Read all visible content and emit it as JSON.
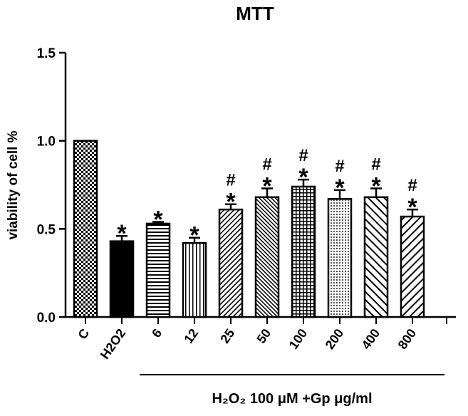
{
  "chart_data": {
    "type": "bar",
    "title": "MTT",
    "y_label": "viability of cell %",
    "x_label": "H₂O₂ 100 μM +Gp μg/ml",
    "categories": [
      "C",
      "H2O2",
      "6",
      "12",
      "25",
      "50",
      "100",
      "200",
      "400",
      "800"
    ],
    "values": [
      1.0,
      0.43,
      0.53,
      0.42,
      0.61,
      0.68,
      0.74,
      0.67,
      0.68,
      0.57
    ],
    "errors": [
      0,
      0.03,
      0.01,
      0.03,
      0.03,
      0.05,
      0.04,
      0.05,
      0.05,
      0.04
    ],
    "stars": [
      null,
      "*",
      "*",
      "*",
      "*",
      "*",
      "*",
      "*",
      "*",
      "*"
    ],
    "hashes": [
      null,
      null,
      null,
      null,
      "#",
      "#",
      "#",
      "#",
      "#",
      "#"
    ],
    "patterns": [
      "checker",
      "solid",
      "horizontal",
      "vertical",
      "diag-right",
      "diag-left",
      "grid",
      "dots",
      "diag-left-wide",
      "diag-right-wide"
    ],
    "color": "#000000",
    "ylim": [
      0,
      1.5
    ],
    "yticks": [
      {
        "value": 0,
        "label": "0.0"
      },
      0.5,
      {
        "value": 1,
        "label": "1.0"
      },
      {
        "value": 1.5,
        "label": "1.5"
      }
    ]
  }
}
